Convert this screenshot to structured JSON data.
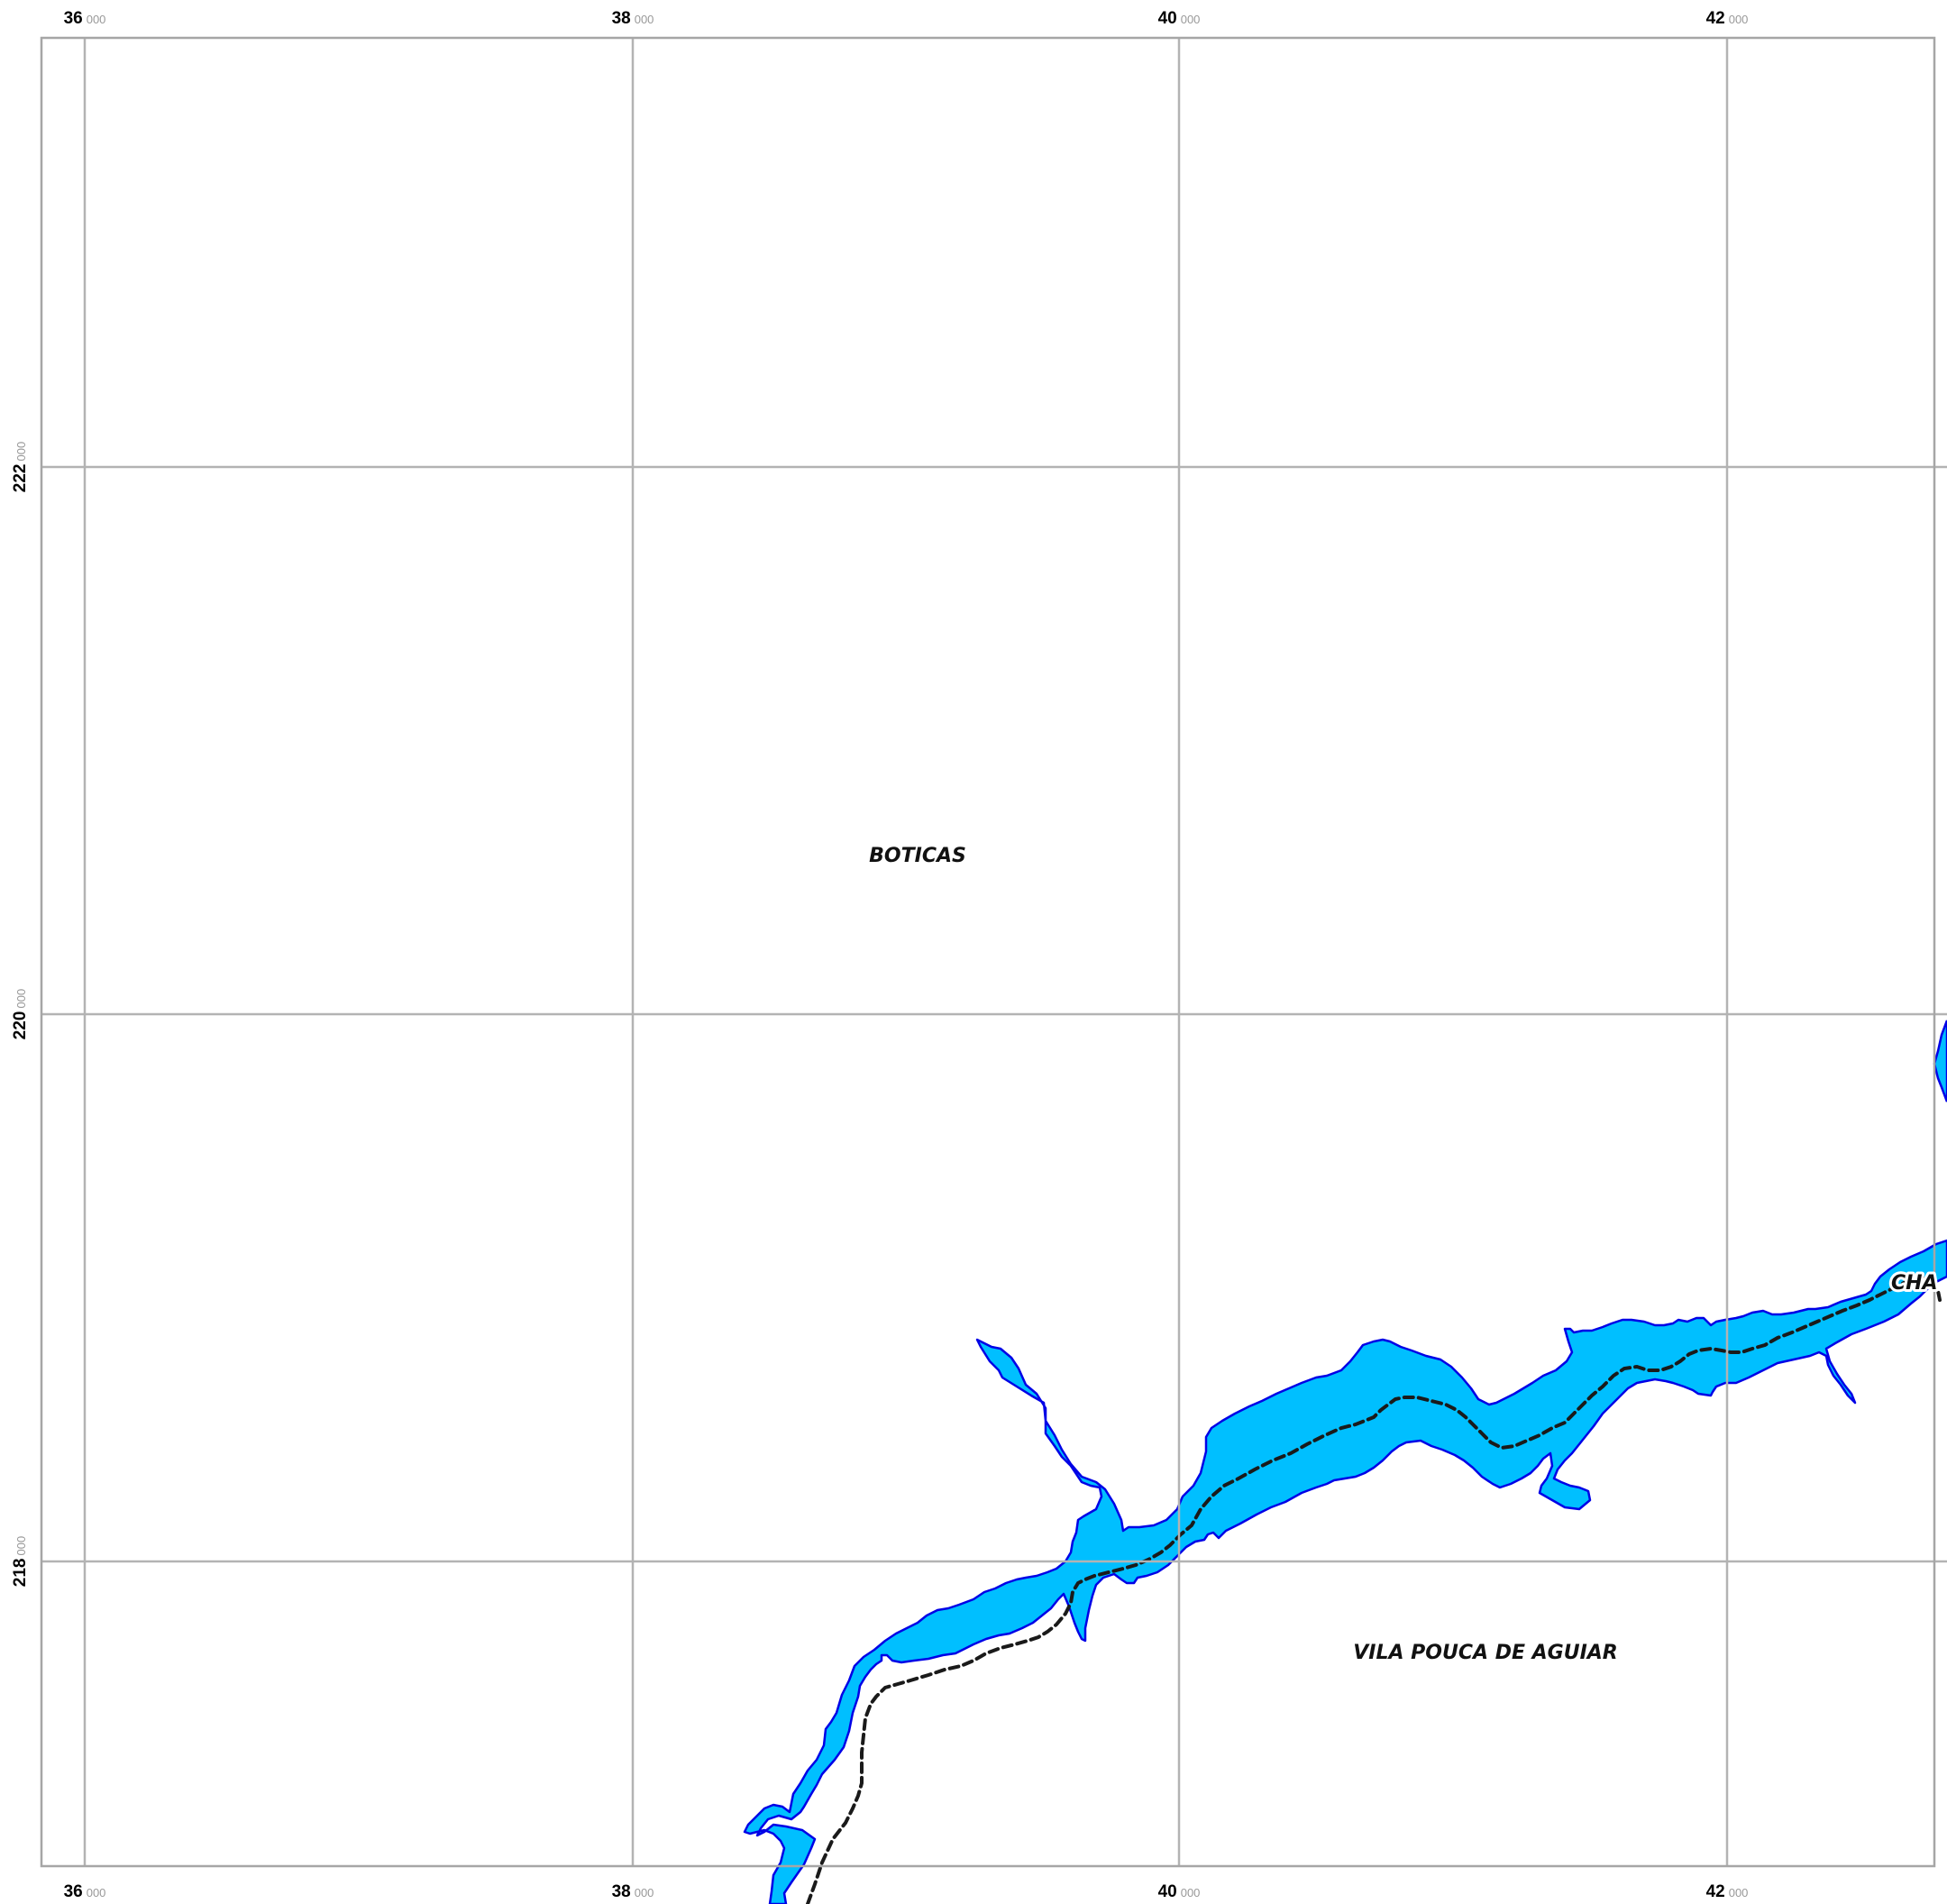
{
  "map": {
    "grid": {
      "x_ticks": [
        {
          "major": "36",
          "minor": "000"
        },
        {
          "major": "38",
          "minor": "000"
        },
        {
          "major": "40",
          "minor": "000"
        },
        {
          "major": "42",
          "minor": "000"
        }
      ],
      "y_ticks": [
        {
          "major": "222",
          "minor": "000"
        },
        {
          "major": "220",
          "minor": "000"
        },
        {
          "major": "218",
          "minor": "000"
        }
      ]
    },
    "labels": {
      "boticas": "BOTICAS",
      "vila_pouca": "VILA POUCA DE AGUIAR",
      "cha": "CHA"
    },
    "colors": {
      "water_fill": "#00bfff",
      "water_outline": "#0000e6",
      "grid": "#b3b3b3",
      "frame": "#a6a6a6",
      "boundary": "#1a1a1a"
    }
  }
}
